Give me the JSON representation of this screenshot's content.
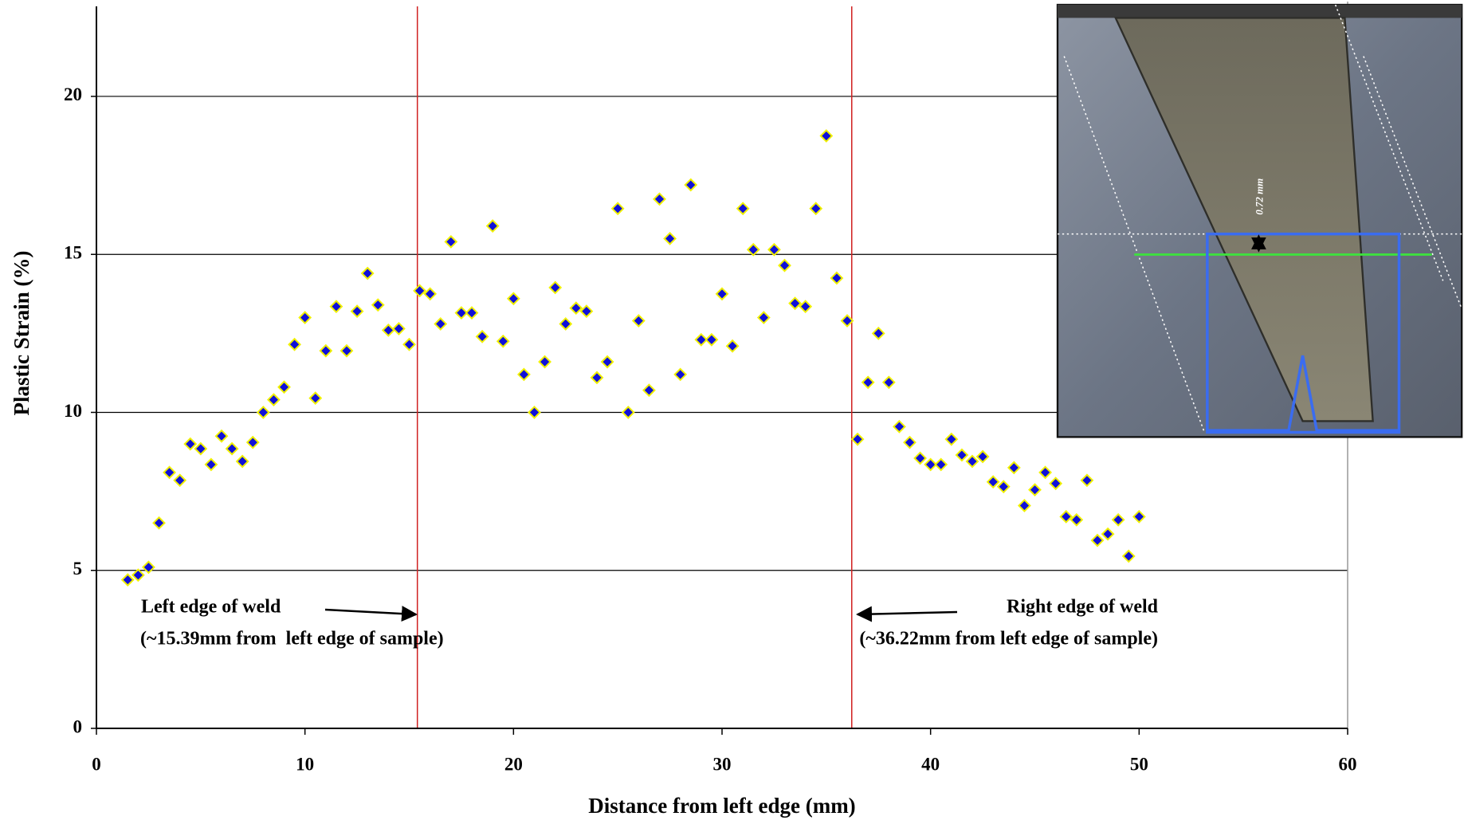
{
  "chart_data": {
    "type": "scatter",
    "xlabel": "Distance from left edge (mm)",
    "ylabel": "Plastic Strain (%)",
    "x": [
      1.5,
      2,
      2.5,
      3,
      3.5,
      4,
      4.5,
      5,
      5.5,
      6,
      6.5,
      7,
      7.5,
      8,
      8.5,
      9,
      9.5,
      10,
      10.5,
      11,
      11.5,
      12,
      12.5,
      13,
      13.5,
      14,
      14.5,
      15,
      15.5,
      16,
      16.5,
      17,
      17.5,
      18,
      18.5,
      19,
      19.5,
      20,
      20.5,
      21,
      21.5,
      22,
      22.5,
      23,
      23.5,
      24,
      24.5,
      25,
      25.5,
      26,
      26.5,
      27,
      27.5,
      28,
      28.5,
      29,
      29.5,
      30,
      30.5,
      31,
      31.5,
      32,
      32.5,
      33,
      33.5,
      34,
      34.5,
      35,
      35.5,
      36,
      36.5,
      37,
      37.5,
      38,
      38.5,
      39,
      39.5,
      40,
      40.5,
      41,
      41.5,
      42,
      42.5,
      43,
      43.5,
      44,
      44.5,
      45,
      45.5,
      46,
      46.5,
      47,
      47.5,
      48,
      48.5,
      49,
      49.5,
      50
    ],
    "values": [
      4.7,
      4.85,
      5.1,
      6.5,
      8.1,
      7.85,
      9.0,
      8.85,
      8.35,
      9.25,
      8.85,
      8.45,
      9.05,
      10.0,
      10.4,
      10.8,
      12.15,
      13.0,
      10.45,
      11.95,
      13.35,
      11.95,
      13.2,
      14.4,
      13.4,
      12.6,
      12.65,
      12.15,
      13.85,
      13.75,
      12.8,
      15.4,
      13.15,
      13.15,
      12.4,
      15.9,
      12.25,
      13.6,
      11.2,
      10.0,
      11.6,
      13.95,
      12.8,
      13.3,
      13.2,
      11.1,
      11.6,
      16.45,
      10.0,
      12.9,
      10.7,
      16.75,
      15.5,
      11.2,
      17.2,
      12.3,
      12.3,
      13.75,
      12.1,
      16.45,
      15.15,
      13.0,
      15.15,
      14.65,
      13.45,
      13.35,
      16.45,
      18.75,
      14.25,
      12.9,
      9.15,
      10.95,
      12.5,
      10.95,
      9.55,
      9.05,
      8.55,
      8.35,
      8.35,
      9.15,
      8.65,
      8.45,
      8.6,
      7.8,
      7.65,
      8.25,
      7.05,
      7.55,
      8.1,
      7.75,
      6.7,
      6.6,
      7.85,
      5.95,
      6.15,
      6.6,
      5.45,
      6.7
    ],
    "color": "#1010d8",
    "edge_color": "#f0f000",
    "xlim": [
      0,
      60
    ],
    "ylim": [
      0,
      23
    ],
    "xticks": [
      0,
      10,
      20,
      30,
      40,
      50,
      60
    ],
    "yticks": [
      0,
      5,
      10,
      15,
      20
    ],
    "grid": true,
    "vlines": [
      15.39,
      36.22
    ],
    "vline_color": "#d02020",
    "annotations": [
      "Left edge of weld",
      "(~15.39mm from  left edge of sample)",
      "Right edge of weld",
      "(~36.22mm from left edge of sample)"
    ],
    "inset_label": "0.72 mm"
  }
}
